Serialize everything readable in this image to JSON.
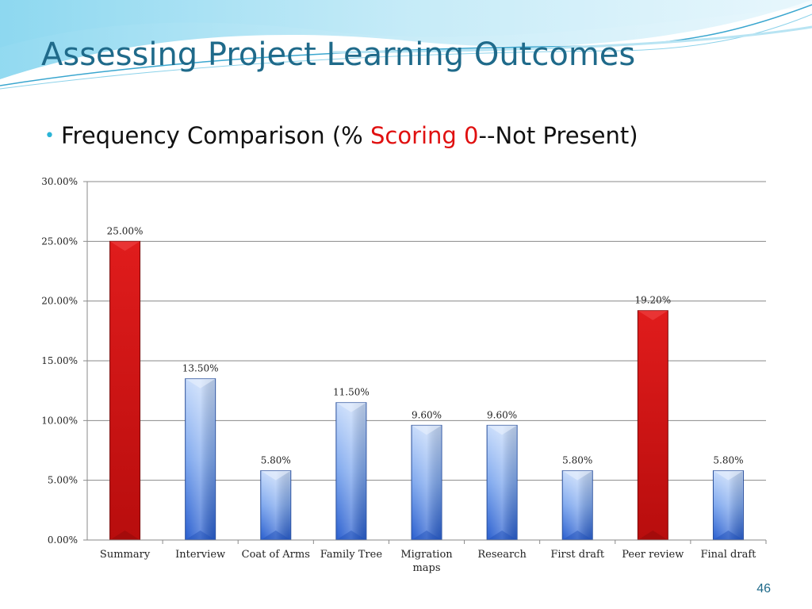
{
  "slide": {
    "title": "Assessing Project Learning Outcomes",
    "subtitle": {
      "bullet": "•",
      "before": "Frequency Comparison (% ",
      "highlight": "Scoring 0",
      "after": "--Not Present)"
    },
    "page_number": "46"
  },
  "colors": {
    "title": "#1f6a8a",
    "highlight": "#e01010",
    "bar_blue": "#3f78d8",
    "bar_red": "#d81a1a"
  },
  "chart_data": {
    "type": "bar",
    "categories": [
      "Summary",
      "Interview",
      "Coat of Arms",
      "Family Tree",
      "Migration maps",
      "Research",
      "First draft",
      "Peer review",
      "Final draft"
    ],
    "values": [
      25.0,
      13.5,
      5.8,
      11.5,
      9.6,
      9.6,
      5.8,
      19.2,
      5.8
    ],
    "data_labels": [
      "25.00%",
      "13.50%",
      "5.80%",
      "11.50%",
      "9.60%",
      "9.60%",
      "5.80%",
      "19.20%",
      "5.80%"
    ],
    "highlighted": [
      true,
      false,
      false,
      false,
      false,
      false,
      false,
      true,
      false
    ],
    "y_ticks": [
      0,
      5,
      10,
      15,
      20,
      25,
      30
    ],
    "y_tick_labels": [
      "0.00%",
      "5.00%",
      "10.00%",
      "15.00%",
      "20.00%",
      "25.00%",
      "30.00%"
    ],
    "ylim": [
      0,
      30
    ],
    "grid": true,
    "legend": false
  }
}
